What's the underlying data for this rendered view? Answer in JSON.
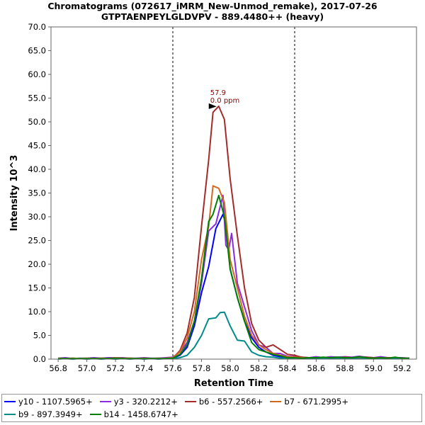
{
  "chart_data": {
    "type": "line",
    "title": "Chromatograms (072617_iMRM_New-Unmod_remake), 2017-07-26",
    "subtitle": "GTPTAENPEYLGLDVPV - 889.4480++ (heavy)",
    "xlabel": "Retention Time",
    "ylabel": "Intensity 10^3",
    "xlim": [
      56.75,
      59.3
    ],
    "ylim": [
      0,
      70
    ],
    "x_ticks": [
      "56.8",
      "57.0",
      "57.2",
      "57.4",
      "57.6",
      "57.8",
      "58.0",
      "58.2",
      "58.4",
      "58.6",
      "58.8",
      "59.0",
      "59.2"
    ],
    "y_ticks": [
      "0.0",
      "5.0",
      "10.0",
      "15.0",
      "20.0",
      "25.0",
      "30.0",
      "35.0",
      "40.0",
      "45.0",
      "50.0",
      "55.0",
      "60.0",
      "65.0",
      "70.0"
    ],
    "grid": false,
    "legend_position": "bottom",
    "boundaries": [
      57.6,
      58.45
    ],
    "annotation": {
      "x": 57.92,
      "y": 53.3,
      "label_rt": "57.9",
      "label_ppm": "0.0 ppm",
      "color": "#8b0000"
    },
    "series": [
      {
        "name": "y10 - 1107.5965+",
        "color": "#0000ff",
        "x": [
          56.8,
          56.85,
          56.9,
          56.95,
          57.0,
          57.05,
          57.1,
          57.15,
          57.2,
          57.25,
          57.3,
          57.35,
          57.4,
          57.45,
          57.5,
          57.55,
          57.6,
          57.65,
          57.7,
          57.75,
          57.8,
          57.85,
          57.9,
          57.95,
          57.97,
          58.0,
          58.05,
          58.1,
          58.15,
          58.2,
          58.25,
          58.3,
          58.35,
          58.4,
          58.45,
          58.5,
          58.55,
          58.6,
          58.65,
          58.7,
          58.75,
          58.8,
          58.85,
          58.9,
          58.95,
          59.0,
          59.05,
          59.1,
          59.15,
          59.2,
          59.25
        ],
        "y": [
          0.1,
          0.2,
          0.1,
          0.1,
          0.1,
          0.2,
          0.1,
          0.2,
          0.1,
          0.2,
          0.1,
          0.1,
          0.2,
          0.1,
          0.1,
          0.2,
          0.2,
          0.8,
          2.5,
          7.0,
          14.0,
          19.5,
          27.5,
          30.5,
          28.5,
          19.0,
          13.0,
          8.0,
          4.5,
          2.5,
          1.5,
          0.8,
          0.5,
          0.3,
          0.3,
          0.2,
          0.2,
          0.1,
          0.2,
          0.3,
          0.2,
          0.3,
          0.2,
          0.2,
          0.3,
          0.2,
          0.4,
          0.2,
          0.2,
          0.2,
          0.1
        ]
      },
      {
        "name": "y3 - 320.2212+",
        "color": "#8a2be2",
        "x": [
          56.8,
          56.85,
          56.9,
          56.95,
          57.0,
          57.05,
          57.1,
          57.15,
          57.2,
          57.25,
          57.3,
          57.35,
          57.4,
          57.45,
          57.5,
          57.55,
          57.6,
          57.65,
          57.7,
          57.75,
          57.8,
          57.85,
          57.9,
          57.95,
          57.97,
          57.99,
          58.01,
          58.05,
          58.1,
          58.15,
          58.2,
          58.25,
          58.3,
          58.35,
          58.4,
          58.45,
          58.5,
          58.55,
          58.6,
          58.65,
          58.7,
          58.75,
          58.8,
          58.85,
          58.9,
          58.95,
          59.0,
          59.05,
          59.1,
          59.15,
          59.2,
          59.25
        ],
        "y": [
          0.2,
          0.3,
          0.1,
          0.2,
          0.2,
          0.3,
          0.2,
          0.3,
          0.3,
          0.3,
          0.2,
          0.2,
          0.3,
          0.2,
          0.2,
          0.3,
          0.4,
          1.5,
          3.5,
          8.0,
          16.0,
          27.0,
          28.5,
          34.5,
          24.0,
          23.0,
          26.5,
          16.0,
          11.0,
          6.0,
          3.0,
          2.5,
          1.2,
          1.2,
          0.6,
          0.5,
          0.4,
          0.3,
          0.5,
          0.3,
          0.5,
          0.4,
          0.5,
          0.4,
          0.6,
          0.4,
          0.3,
          0.5,
          0.3,
          0.3,
          0.3,
          0.2
        ]
      },
      {
        "name": "b6 - 557.2566+",
        "color": "#a52a2a",
        "x": [
          56.8,
          56.85,
          56.9,
          56.95,
          57.0,
          57.05,
          57.1,
          57.15,
          57.2,
          57.25,
          57.3,
          57.35,
          57.4,
          57.45,
          57.5,
          57.55,
          57.6,
          57.65,
          57.7,
          57.75,
          57.8,
          57.85,
          57.88,
          57.92,
          57.96,
          58.0,
          58.05,
          58.1,
          58.15,
          58.2,
          58.25,
          58.3,
          58.35,
          58.4,
          58.45,
          58.5,
          58.55,
          58.6,
          58.65,
          58.7,
          58.75,
          58.8,
          58.85,
          58.9,
          58.95,
          59.0,
          59.05,
          59.1,
          59.15,
          59.2,
          59.25
        ],
        "y": [
          0.1,
          0.1,
          0.2,
          0.1,
          0.1,
          0.1,
          0.2,
          0.1,
          0.2,
          0.1,
          0.2,
          0.1,
          0.1,
          0.1,
          0.2,
          0.1,
          0.2,
          1.8,
          5.5,
          13.0,
          28.0,
          42.0,
          52.0,
          53.3,
          50.5,
          38.0,
          26.0,
          15.0,
          7.5,
          4.0,
          2.5,
          3.0,
          2.0,
          1.0,
          0.8,
          0.4,
          0.3,
          0.3,
          0.2,
          0.3,
          0.2,
          0.4,
          0.3,
          0.3,
          0.4,
          0.3,
          0.2,
          0.3,
          0.2,
          0.2,
          0.2
        ]
      },
      {
        "name": "b7 - 671.2995+",
        "color": "#d2691e",
        "x": [
          56.8,
          56.85,
          56.9,
          56.95,
          57.0,
          57.05,
          57.1,
          57.15,
          57.2,
          57.25,
          57.3,
          57.35,
          57.4,
          57.45,
          57.5,
          57.55,
          57.6,
          57.65,
          57.7,
          57.75,
          57.8,
          57.85,
          57.88,
          57.92,
          57.96,
          58.0,
          58.05,
          58.1,
          58.15,
          58.2,
          58.25,
          58.3,
          58.35,
          58.4,
          58.45,
          58.5,
          58.55,
          58.6,
          58.65,
          58.7,
          58.75,
          58.8,
          58.85,
          58.9,
          58.95,
          59.0,
          59.05,
          59.1,
          59.15,
          59.2,
          59.25
        ],
        "y": [
          0.2,
          0.1,
          0.2,
          0.1,
          0.2,
          0.1,
          0.2,
          0.1,
          0.3,
          0.2,
          0.2,
          0.1,
          0.2,
          0.1,
          0.1,
          0.2,
          0.3,
          1.5,
          4.5,
          10.0,
          21.0,
          28.0,
          36.5,
          36.0,
          33.0,
          21.0,
          15.0,
          9.0,
          5.0,
          3.0,
          2.0,
          1.2,
          0.8,
          0.5,
          0.4,
          0.3,
          0.2,
          0.3,
          0.2,
          0.3,
          0.2,
          0.3,
          0.2,
          0.3,
          0.2,
          0.2,
          0.3,
          0.2,
          0.2,
          0.2,
          0.1
        ]
      },
      {
        "name": "b9 - 897.3949+",
        "color": "#008b8b",
        "x": [
          56.8,
          56.85,
          56.9,
          56.95,
          57.0,
          57.05,
          57.1,
          57.15,
          57.2,
          57.25,
          57.3,
          57.35,
          57.4,
          57.45,
          57.5,
          57.55,
          57.6,
          57.65,
          57.7,
          57.75,
          57.8,
          57.85,
          57.9,
          57.93,
          57.96,
          58.0,
          58.05,
          58.1,
          58.15,
          58.2,
          58.25,
          58.3,
          58.35,
          58.4,
          58.45,
          58.5,
          58.55,
          58.6,
          58.65,
          58.7,
          58.75,
          58.8,
          58.85,
          58.9,
          58.95,
          59.0,
          59.05,
          59.1,
          59.15,
          59.2,
          59.25
        ],
        "y": [
          0.0,
          0.1,
          0.0,
          0.1,
          0.0,
          0.1,
          0.0,
          0.1,
          0.0,
          0.1,
          0.0,
          0.1,
          0.0,
          0.1,
          0.0,
          0.1,
          0.1,
          0.3,
          0.8,
          2.5,
          5.0,
          8.5,
          8.7,
          9.8,
          9.9,
          7.0,
          4.0,
          3.8,
          1.5,
          0.8,
          0.5,
          0.4,
          0.2,
          0.2,
          0.1,
          0.1,
          0.2,
          0.1,
          0.1,
          0.2,
          0.1,
          0.1,
          0.2,
          0.1,
          0.1,
          0.2,
          0.1,
          0.1,
          0.2,
          0.1,
          0.1
        ]
      },
      {
        "name": "b14 - 1458.6747+",
        "color": "#008000",
        "x": [
          56.8,
          56.85,
          56.9,
          56.95,
          57.0,
          57.05,
          57.1,
          57.15,
          57.2,
          57.25,
          57.3,
          57.35,
          57.4,
          57.45,
          57.5,
          57.55,
          57.6,
          57.65,
          57.7,
          57.75,
          57.8,
          57.85,
          57.88,
          57.92,
          57.96,
          58.0,
          58.05,
          58.1,
          58.15,
          58.2,
          58.25,
          58.3,
          58.35,
          58.4,
          58.45,
          58.5,
          58.55,
          58.6,
          58.65,
          58.7,
          58.75,
          58.8,
          58.85,
          58.9,
          58.95,
          59.0,
          59.05,
          59.1,
          59.15,
          59.2,
          59.25
        ],
        "y": [
          0.1,
          0.1,
          0.1,
          0.1,
          0.1,
          0.1,
          0.1,
          0.1,
          0.2,
          0.1,
          0.1,
          0.1,
          0.1,
          0.1,
          0.1,
          0.1,
          0.2,
          1.0,
          3.0,
          8.0,
          17.0,
          29.0,
          30.5,
          34.5,
          30.0,
          19.0,
          13.0,
          8.0,
          3.5,
          2.0,
          1.5,
          1.0,
          0.7,
          0.3,
          0.3,
          0.2,
          0.3,
          0.3,
          0.4,
          0.3,
          0.4,
          0.3,
          0.3,
          0.5,
          0.3,
          0.2,
          0.3,
          0.2,
          0.4,
          0.2,
          0.2
        ]
      }
    ]
  }
}
